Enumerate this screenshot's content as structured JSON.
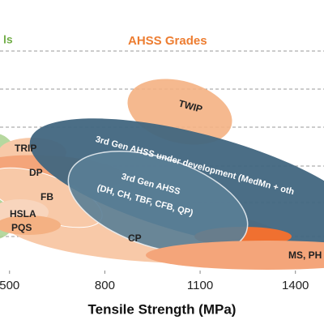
{
  "chart_data": {
    "type": "region",
    "group_labels": [
      "ls",
      "AHSS Grades"
    ],
    "regions": [
      "TWIP",
      "3rd Gen AHSS under development (MedMn + oth",
      "TRIP",
      "DP",
      "3rd Gen AHSS",
      "(DH, CH, TBF, CFB, QP)",
      "FB",
      "HSLA",
      "PQS",
      "CP",
      "MS, PH"
    ],
    "xlabel": "Tensile Strength (MPa)",
    "xlim": [
      470,
      1490
    ],
    "xticks": [
      500,
      800,
      1100,
      1400
    ],
    "grid": true
  }
}
